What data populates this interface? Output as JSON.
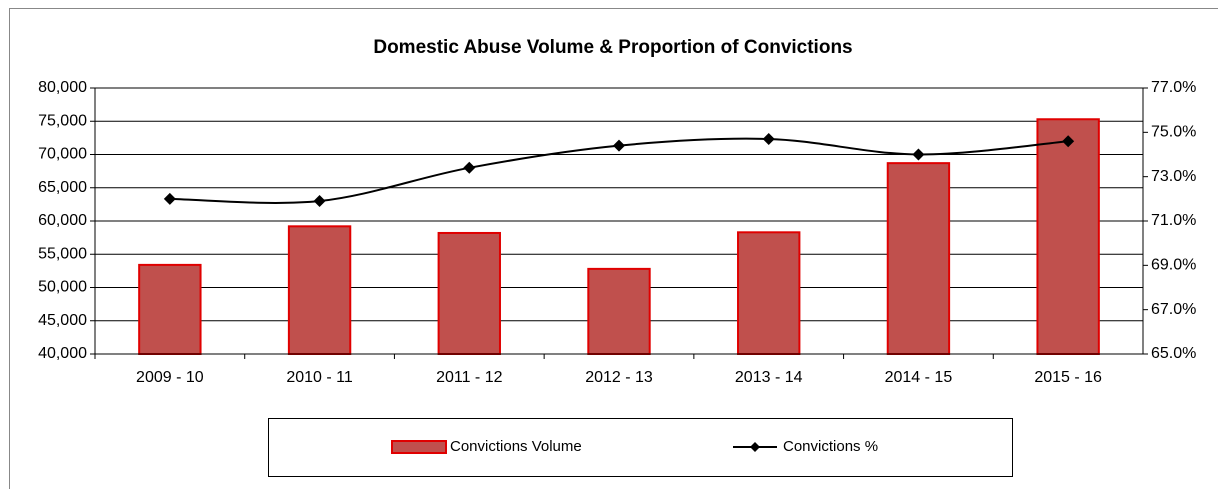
{
  "chart_data": {
    "type": "bar-line",
    "title": "Domestic Abuse Volume & Proportion of Convictions",
    "categories": [
      "2009 - 10",
      "2010 - 11",
      "2011 - 12",
      "2012 - 13",
      "2013 - 14",
      "2014 - 15",
      "2015 - 16"
    ],
    "series": [
      {
        "name": "Convictions Volume",
        "type": "bar",
        "color": "#c0504d",
        "values": [
          53400,
          59200,
          58200,
          52800,
          58300,
          68700,
          75300
        ]
      },
      {
        "name": "Convictions %",
        "type": "line",
        "axis": "y2",
        "color": "#000000",
        "values": [
          72.0,
          71.9,
          73.4,
          74.4,
          74.7,
          74.0,
          74.6
        ]
      }
    ],
    "ylim": [
      40000,
      80000
    ],
    "yticks": [
      {
        "value": 40000,
        "label": "40,000"
      },
      {
        "value": 45000,
        "label": "45,000"
      },
      {
        "value": 50000,
        "label": "50,000"
      },
      {
        "value": 55000,
        "label": "55,000"
      },
      {
        "value": 60000,
        "label": "60,000"
      },
      {
        "value": 65000,
        "label": "65,000"
      },
      {
        "value": 70000,
        "label": "70,000"
      },
      {
        "value": 75000,
        "label": "75,000"
      },
      {
        "value": 80000,
        "label": "80,000"
      }
    ],
    "y2lim": [
      65,
      77
    ],
    "y2ticks": [
      {
        "value": 65,
        "label": "65.0%"
      },
      {
        "value": 67,
        "label": "67.0%"
      },
      {
        "value": 69,
        "label": "69.0%"
      },
      {
        "value": 71,
        "label": "71.0%"
      },
      {
        "value": 73,
        "label": "73.0%"
      },
      {
        "value": 75,
        "label": "75.0%"
      },
      {
        "value": 77,
        "label": "77.0%"
      }
    ],
    "grid": true,
    "legend": "bottom"
  }
}
